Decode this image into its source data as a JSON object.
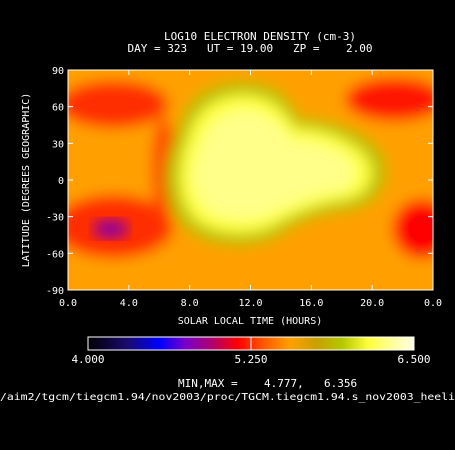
{
  "chart_data": {
    "type": "heatmap",
    "title": "LOG10 ELECTRON DENSITY (cm-3)",
    "subtitle": "DAY = 323   UT = 19.00   ZP =    2.00",
    "xlabel": "SOLAR LOCAL TIME (HOURS)",
    "ylabel": "LATITUDE (DEGREES GEOGRAPHIC)",
    "x_ticks": [
      "0.0",
      "4.0",
      "8.0",
      "12.0",
      "16.0",
      "20.0",
      "0.0"
    ],
    "y_ticks": [
      "90",
      "60",
      "30",
      "0",
      "-30",
      "-60",
      "-90"
    ],
    "xlim": [
      0,
      24
    ],
    "ylim": [
      -90,
      90
    ],
    "colorbar": {
      "min_label": "4.000",
      "mid_label": "5.250",
      "max_label": "6.500",
      "range": [
        4.0,
        6.5
      ],
      "stops": [
        [
          0.0,
          "#000000"
        ],
        [
          0.12,
          "#1a0a6e"
        ],
        [
          0.22,
          "#0000ff"
        ],
        [
          0.3,
          "#7a00c8"
        ],
        [
          0.38,
          "#b0006e"
        ],
        [
          0.46,
          "#ff0000"
        ],
        [
          0.54,
          "#ff5a00"
        ],
        [
          0.62,
          "#ffa000"
        ],
        [
          0.7,
          "#c8a000"
        ],
        [
          0.78,
          "#b4c800"
        ],
        [
          0.86,
          "#ffff3c"
        ],
        [
          0.93,
          "#ffff96"
        ],
        [
          1.0,
          "#ffffe6"
        ]
      ]
    },
    "min_max_label": "MIN,MAX =",
    "min_value": "4.777,",
    "max_value": "6.356",
    "features": [
      {
        "lt": 11.5,
        "lat": 10,
        "value": 6.3
      },
      {
        "lt": 13.0,
        "lat": 45,
        "value": 6.1
      },
      {
        "lt": 18.5,
        "lat": -5,
        "value": 5.9
      },
      {
        "lt": 2.5,
        "lat": 62,
        "value": 5.2
      },
      {
        "lt": 21.5,
        "lat": 68,
        "value": 5.2
      },
      {
        "lt": 3.0,
        "lat": -40,
        "value": 4.8
      },
      {
        "lt": 23.5,
        "lat": -40,
        "value": 5.1
      }
    ]
  },
  "footer": {
    "path": "/aim2/tgcm/tiegcm1.94/nov2003/proc/TGCM.tiegcm1.94.s_nov2003_heeli"
  }
}
